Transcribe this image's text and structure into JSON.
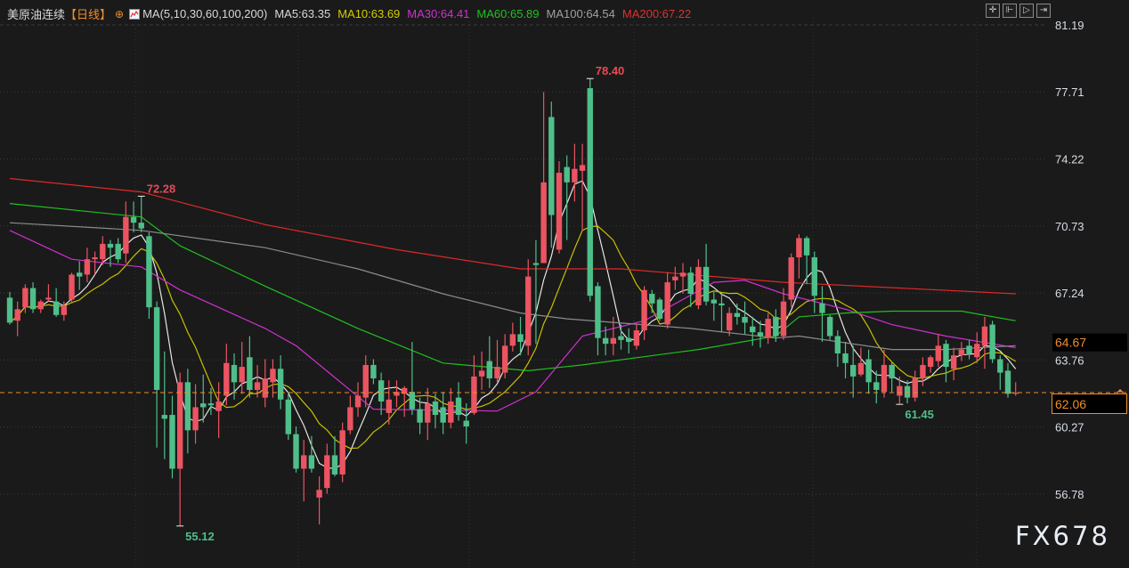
{
  "header": {
    "title": "美原油连续",
    "period": "【日线】",
    "target_icon": "crosshair-circle-icon",
    "ma_icon": "indicator-chart-icon",
    "ma_params": "MA(5,10,30,60,100,200)",
    "ma_values": [
      {
        "label": "MA5:63.35",
        "color": "#d8d8d8"
      },
      {
        "label": "MA10:63.69",
        "color": "#d4cc00"
      },
      {
        "label": "MA30:64.41",
        "color": "#d030d0"
      },
      {
        "label": "MA60:65.89",
        "color": "#20c020"
      },
      {
        "label": "MA100:64.54",
        "color": "#a0a0a0"
      },
      {
        "label": "MA200:67.22",
        "color": "#e03030"
      }
    ]
  },
  "toolbar": {
    "buttons": [
      {
        "icon": "crosshair-icon",
        "glyph": "✛"
      },
      {
        "icon": "zoom-axis-icon",
        "glyph": "⊩"
      },
      {
        "icon": "play-forward-icon",
        "glyph": "▷"
      },
      {
        "icon": "jump-to-end-icon",
        "glyph": "⇥"
      }
    ]
  },
  "watermark": "FX678",
  "chart_data": {
    "type": "candlestick",
    "title": "",
    "ylim": [
      56.78,
      81.19
    ],
    "yticks": [
      "81.19",
      "77.71",
      "74.22",
      "70.73",
      "67.24",
      "63.76",
      "60.27",
      "56.78"
    ],
    "grid": true,
    "colors": {
      "up": "#eb5461",
      "down": "#4fbf8a",
      "background": "#1a1a1a",
      "last_price": "#f08c2a"
    },
    "last_price": "62.06",
    "hover_price": "64.67",
    "annotations": [
      {
        "label": "78.40",
        "index": 75,
        "value": 78.4,
        "type": "high",
        "color": "#e84a55"
      },
      {
        "label": "72.28",
        "index": 17,
        "value": 72.28,
        "type": "high",
        "color": "#e84a55"
      },
      {
        "label": "55.12",
        "index": 22,
        "value": 55.12,
        "type": "low",
        "color": "#4fbf8a"
      },
      {
        "label": "61.45",
        "index": 115,
        "value": 61.45,
        "type": "low",
        "color": "#4fbf8a"
      }
    ],
    "ohlc": [
      [
        67.0,
        67.3,
        65.6,
        65.7
      ],
      [
        65.8,
        66.8,
        65.0,
        66.4
      ],
      [
        66.5,
        67.7,
        66.2,
        67.5
      ],
      [
        67.5,
        67.8,
        66.2,
        66.4
      ],
      [
        66.4,
        66.9,
        66.2,
        66.8
      ],
      [
        66.9,
        67.7,
        66.8,
        67.0
      ],
      [
        66.8,
        67.5,
        66.0,
        66.1
      ],
      [
        66.1,
        66.8,
        65.8,
        66.6
      ],
      [
        66.9,
        68.3,
        66.7,
        68.2
      ],
      [
        68.3,
        68.9,
        67.4,
        68.1
      ],
      [
        68.2,
        69.6,
        67.8,
        69.0
      ],
      [
        69.0,
        69.4,
        68.2,
        69.1
      ],
      [
        69.0,
        70.2,
        68.7,
        69.8
      ],
      [
        69.8,
        70.0,
        68.6,
        69.6
      ],
      [
        69.8,
        70.1,
        68.8,
        69.0
      ],
      [
        69.3,
        72.0,
        68.8,
        71.2
      ],
      [
        71.2,
        72.0,
        70.4,
        70.9
      ],
      [
        70.9,
        72.28,
        70.4,
        70.6
      ],
      [
        70.2,
        70.4,
        65.9,
        66.5
      ],
      [
        66.5,
        66.8,
        59.2,
        62.2
      ],
      [
        60.9,
        64.2,
        58.6,
        60.7
      ],
      [
        60.9,
        61.9,
        57.6,
        58.1
      ],
      [
        58.1,
        63.1,
        55.12,
        62.6
      ],
      [
        62.6,
        63.3,
        58.9,
        60.1
      ],
      [
        60.1,
        62.5,
        59.4,
        61.3
      ],
      [
        61.5,
        63.0,
        60.5,
        61.3
      ],
      [
        61.5,
        62.3,
        60.9,
        61.4
      ],
      [
        61.1,
        62.6,
        59.7,
        61.6
      ],
      [
        61.9,
        64.6,
        61.4,
        63.6
      ],
      [
        63.5,
        64.1,
        61.7,
        62.6
      ],
      [
        62.6,
        64.7,
        62.0,
        63.4
      ],
      [
        63.9,
        65.0,
        61.8,
        62.2
      ],
      [
        62.2,
        63.5,
        61.8,
        62.6
      ],
      [
        61.8,
        63.8,
        61.3,
        62.8
      ],
      [
        62.6,
        63.8,
        61.8,
        63.3
      ],
      [
        63.3,
        64.0,
        61.2,
        61.7
      ],
      [
        61.7,
        62.1,
        59.6,
        59.9
      ],
      [
        59.9,
        60.3,
        57.9,
        58.1
      ],
      [
        58.1,
        59.6,
        56.4,
        58.8
      ],
      [
        58.8,
        59.8,
        57.9,
        58.1
      ],
      [
        56.6,
        57.7,
        55.2,
        57.0
      ],
      [
        57.1,
        59.4,
        56.8,
        58.8
      ],
      [
        58.8,
        59.8,
        57.7,
        57.8
      ],
      [
        57.8,
        60.5,
        57.4,
        60.1
      ],
      [
        60.1,
        61.9,
        59.9,
        61.3
      ],
      [
        61.3,
        62.6,
        60.8,
        61.9
      ],
      [
        61.8,
        64.0,
        61.3,
        63.5
      ],
      [
        63.5,
        63.8,
        62.5,
        62.8
      ],
      [
        62.7,
        63.1,
        60.9,
        61.6
      ],
      [
        61.0,
        62.7,
        60.4,
        61.7
      ],
      [
        61.9,
        62.7,
        61.3,
        62.1
      ],
      [
        62.0,
        62.4,
        60.8,
        62.3
      ],
      [
        62.1,
        64.7,
        60.9,
        61.2
      ],
      [
        61.2,
        61.8,
        59.9,
        60.5
      ],
      [
        60.5,
        62.3,
        59.6,
        61.5
      ],
      [
        61.6,
        62.0,
        60.2,
        60.9
      ],
      [
        61.3,
        62.1,
        59.9,
        60.5
      ],
      [
        60.5,
        62.3,
        60.2,
        61.6
      ],
      [
        61.8,
        62.6,
        60.6,
        60.9
      ],
      [
        60.6,
        61.5,
        59.4,
        60.3
      ],
      [
        61.0,
        64.0,
        60.9,
        62.9
      ],
      [
        62.9,
        64.2,
        62.2,
        63.2
      ],
      [
        63.7,
        65.0,
        62.3,
        62.8
      ],
      [
        62.8,
        64.8,
        62.6,
        63.4
      ],
      [
        63.1,
        65.1,
        62.8,
        64.5
      ],
      [
        64.5,
        65.7,
        64.2,
        65.1
      ],
      [
        65.1,
        66.0,
        64.0,
        64.7
      ],
      [
        64.5,
        69.0,
        64.0,
        68.1
      ],
      [
        68.8,
        70.0,
        64.6,
        68.7
      ],
      [
        68.8,
        77.7,
        68.8,
        73.0
      ],
      [
        76.4,
        77.2,
        69.6,
        71.3
      ],
      [
        69.5,
        74.1,
        69.3,
        73.5
      ],
      [
        73.8,
        74.4,
        70.0,
        73.0
      ],
      [
        73.0,
        75.0,
        72.0,
        73.7
      ],
      [
        73.6,
        75.0,
        70.5,
        73.9
      ],
      [
        77.9,
        78.4,
        66.8,
        67.1
      ],
      [
        67.6,
        67.8,
        64.0,
        64.9
      ],
      [
        64.9,
        65.5,
        64.0,
        64.6
      ],
      [
        64.6,
        66.0,
        64.0,
        64.9
      ],
      [
        65.0,
        65.6,
        64.3,
        64.8
      ],
      [
        64.9,
        65.4,
        64.1,
        64.7
      ],
      [
        64.5,
        65.6,
        64.3,
        65.3
      ],
      [
        65.3,
        67.6,
        64.8,
        67.4
      ],
      [
        67.2,
        67.4,
        66.2,
        66.7
      ],
      [
        66.9,
        67.0,
        65.8,
        65.9
      ],
      [
        65.6,
        68.3,
        65.4,
        67.8
      ],
      [
        67.9,
        68.6,
        67.4,
        68.1
      ],
      [
        68.1,
        68.8,
        67.2,
        68.3
      ],
      [
        68.3,
        68.6,
        66.5,
        67.2
      ],
      [
        66.6,
        69.0,
        66.4,
        68.6
      ],
      [
        68.6,
        69.8,
        66.6,
        66.8
      ],
      [
        66.9,
        67.3,
        65.8,
        66.7
      ],
      [
        66.7,
        67.3,
        65.2,
        66.6
      ],
      [
        65.3,
        66.5,
        65.0,
        66.2
      ],
      [
        66.2,
        66.7,
        65.6,
        66.0
      ],
      [
        66.0,
        66.8,
        65.1,
        65.7
      ],
      [
        65.5,
        66.0,
        64.5,
        65.2
      ],
      [
        65.2,
        65.8,
        64.4,
        65.0
      ],
      [
        64.9,
        66.2,
        64.6,
        65.9
      ],
      [
        66.0,
        66.4,
        64.7,
        65.0
      ],
      [
        65.0,
        67.5,
        64.8,
        66.8
      ],
      [
        66.9,
        69.3,
        66.5,
        69.1
      ],
      [
        69.1,
        70.3,
        68.0,
        70.1
      ],
      [
        70.1,
        70.2,
        67.7,
        69.2
      ],
      [
        69.1,
        69.4,
        66.2,
        67.1
      ],
      [
        66.7,
        67.6,
        64.7,
        66.2
      ],
      [
        66.0,
        66.1,
        64.8,
        65.0
      ],
      [
        65.0,
        65.3,
        63.4,
        64.1
      ],
      [
        64.1,
        64.7,
        62.8,
        63.6
      ],
      [
        63.5,
        64.5,
        61.8,
        62.9
      ],
      [
        63.0,
        64.4,
        62.9,
        63.6
      ],
      [
        63.8,
        64.3,
        62.0,
        62.6
      ],
      [
        62.6,
        63.2,
        61.5,
        62.2
      ],
      [
        62.1,
        64.3,
        61.8,
        63.5
      ],
      [
        63.5,
        63.7,
        62.1,
        62.8
      ],
      [
        61.9,
        62.9,
        61.45,
        62.4
      ],
      [
        62.4,
        62.7,
        61.5,
        61.8
      ],
      [
        61.8,
        63.2,
        61.6,
        62.8
      ],
      [
        62.8,
        63.9,
        62.4,
        63.5
      ],
      [
        63.4,
        64.0,
        63.1,
        63.9
      ],
      [
        63.7,
        65.1,
        63.4,
        64.5
      ],
      [
        64.6,
        64.8,
        62.6,
        63.4
      ],
      [
        63.3,
        64.4,
        62.7,
        64.0
      ],
      [
        64.0,
        64.7,
        63.7,
        64.3
      ],
      [
        64.5,
        64.8,
        63.8,
        64.1
      ],
      [
        63.9,
        65.2,
        63.6,
        64.6
      ],
      [
        64.5,
        66.0,
        63.3,
        65.5
      ],
      [
        65.6,
        65.8,
        63.6,
        63.8
      ],
      [
        63.8,
        64.0,
        62.2,
        63.1
      ],
      [
        63.2,
        63.6,
        61.8,
        62.0
      ],
      [
        62.0,
        62.6,
        61.9,
        62.06
      ]
    ],
    "moving_averages": [
      {
        "name": "MA5",
        "period": 5,
        "color": "#e6e6e6"
      },
      {
        "name": "MA10",
        "period": 10,
        "color": "#c8c000"
      },
      {
        "name": "MA30",
        "color": "#d030d0",
        "points": [
          [
            0,
            70.5
          ],
          [
            8,
            69.0
          ],
          [
            17,
            68.6
          ],
          [
            22,
            67.4
          ],
          [
            33,
            65.4
          ],
          [
            37,
            64.5
          ],
          [
            47,
            61.2
          ],
          [
            63,
            61.1
          ],
          [
            68,
            62.1
          ],
          [
            74,
            65.0
          ],
          [
            82,
            65.8
          ],
          [
            91,
            67.8
          ],
          [
            95,
            67.9
          ],
          [
            100,
            67.2
          ],
          [
            108,
            66.4
          ],
          [
            114,
            65.6
          ],
          [
            121,
            65.0
          ],
          [
            130,
            64.4
          ]
        ]
      },
      {
        "name": "MA60",
        "color": "#1fc01f",
        "points": [
          [
            0,
            71.9
          ],
          [
            17,
            71.2
          ],
          [
            22,
            69.7
          ],
          [
            33,
            67.6
          ],
          [
            45,
            65.4
          ],
          [
            56,
            63.6
          ],
          [
            67,
            63.2
          ],
          [
            74,
            63.5
          ],
          [
            89,
            64.3
          ],
          [
            99,
            65.0
          ],
          [
            102,
            66.0
          ],
          [
            108,
            66.2
          ],
          [
            114,
            66.3
          ],
          [
            123,
            66.3
          ],
          [
            130,
            65.8
          ]
        ]
      },
      {
        "name": "MA100",
        "color": "#8c8c8c",
        "points": [
          [
            0,
            70.9
          ],
          [
            17,
            70.5
          ],
          [
            33,
            69.6
          ],
          [
            45,
            68.5
          ],
          [
            56,
            67.2
          ],
          [
            66,
            66.2
          ],
          [
            72,
            65.9
          ],
          [
            88,
            65.4
          ],
          [
            99,
            64.9
          ],
          [
            102,
            65.0
          ],
          [
            114,
            64.3
          ],
          [
            121,
            64.3
          ],
          [
            130,
            64.5
          ]
        ]
      },
      {
        "name": "MA200",
        "color": "#e02828",
        "points": [
          [
            0,
            73.2
          ],
          [
            17,
            72.5
          ],
          [
            33,
            70.8
          ],
          [
            50,
            69.5
          ],
          [
            66,
            68.5
          ],
          [
            79,
            68.5
          ],
          [
            100,
            67.8
          ],
          [
            130,
            67.2
          ]
        ]
      }
    ]
  }
}
